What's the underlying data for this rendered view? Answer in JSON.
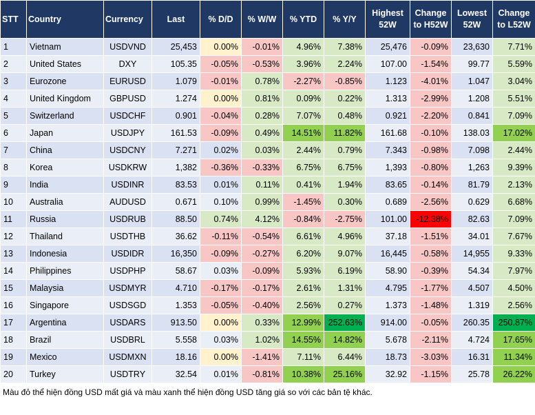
{
  "table": {
    "header": [
      "STT",
      "Country",
      "Currency",
      "Last",
      "% D/D",
      "% W/W",
      "% YTD",
      "% Y/Y",
      "Highest 52W",
      "Change to H52W",
      "Lowest 52W",
      "Change to L52W"
    ],
    "rows": [
      [
        "1",
        "Vietnam",
        "USDVND",
        "25,453",
        "0.00%",
        "-0.01%",
        "4.96%",
        "7.38%",
        "25,476",
        "-0.09%",
        "23,630",
        "7.71%"
      ],
      [
        "2",
        "United States",
        "DXY",
        "105.35",
        "-0.05%",
        "-0.53%",
        "3.96%",
        "2.24%",
        "107.00",
        "-1.54%",
        "99.77",
        "5.59%"
      ],
      [
        "3",
        "Eurozone",
        "EURUSD",
        "1.079",
        "-0.01%",
        "0.78%",
        "-2.27%",
        "-0.85%",
        "1.123",
        "-4.01%",
        "1.047",
        "3.04%"
      ],
      [
        "4",
        "United Kingdom",
        "GBPUSD",
        "1.274",
        "0.00%",
        "0.81%",
        "0.09%",
        "0.22%",
        "1.313",
        "-2.99%",
        "1.208",
        "5.51%"
      ],
      [
        "5",
        "Switzerland",
        "USDCHF",
        "0.901",
        "-0.04%",
        "0.28%",
        "7.07%",
        "0.48%",
        "0.921",
        "-2.20%",
        "0.841",
        "7.09%"
      ],
      [
        "6",
        "Japan",
        "USDJPY",
        "161.53",
        "-0.09%",
        "0.49%",
        "14.51%",
        "11.82%",
        "161.68",
        "-0.10%",
        "138.03",
        "17.02%"
      ],
      [
        "7",
        "China",
        "USDCNY",
        "7.271",
        "0.02%",
        "0.03%",
        "2.44%",
        "0.79%",
        "7.343",
        "-0.98%",
        "7.098",
        "2.44%"
      ],
      [
        "8",
        "Korea",
        "USDKRW",
        "1,382",
        "-0.36%",
        "-0.33%",
        "6.75%",
        "6.75%",
        "1,393",
        "-0.80%",
        "1,263",
        "9.39%"
      ],
      [
        "9",
        "India",
        "USDINR",
        "83.53",
        "0.01%",
        "0.11%",
        "0.41%",
        "1.94%",
        "83.65",
        "-0.14%",
        "81.79",
        "2.13%"
      ],
      [
        "10",
        "Australia",
        "AUDUSD",
        "0.671",
        "0.10%",
        "0.99%",
        "-1.45%",
        "0.30%",
        "0.689",
        "-2.56%",
        "0.629",
        "6.68%"
      ],
      [
        "11",
        "Russia",
        "USDRUB",
        "88.50",
        "0.74%",
        "4.12%",
        "-0.84%",
        "-2.75%",
        "101.00",
        "-12.38%",
        "82.63",
        "7.09%"
      ],
      [
        "12",
        "Thailand",
        "USDTHB",
        "36.62",
        "-0.11%",
        "-0.54%",
        "6.61%",
        "4.96%",
        "37.18",
        "-1.51%",
        "34.01",
        "7.67%"
      ],
      [
        "13",
        "Indonesia",
        "USDIDR",
        "16,350",
        "-0.09%",
        "-0.27%",
        "6.20%",
        "9.07%",
        "16,445",
        "-0.58%",
        "14,955",
        "9.33%"
      ],
      [
        "14",
        "Philippines",
        "USDPHP",
        "58.67",
        "0.03%",
        "-0.09%",
        "5.93%",
        "6.19%",
        "58.90",
        "-0.39%",
        "54.34",
        "7.97%"
      ],
      [
        "15",
        "Malaysia",
        "USDMYR",
        "4.710",
        "-0.17%",
        "-0.17%",
        "2.61%",
        "1.31%",
        "4.795",
        "-1.77%",
        "4.507",
        "4.50%"
      ],
      [
        "16",
        "Singapore",
        "USDSGD",
        "1.353",
        "-0.05%",
        "-0.40%",
        "2.56%",
        "0.27%",
        "1.373",
        "-1.48%",
        "1.319",
        "2.56%"
      ],
      [
        "17",
        "Argentina",
        "USDARS",
        "913.50",
        "0.00%",
        "0.33%",
        "12.99%",
        "252.63%",
        "914.00",
        "-0.05%",
        "260.35",
        "250.87%"
      ],
      [
        "18",
        "Brazil",
        "USDBRL",
        "5.558",
        "0.03%",
        "1.02%",
        "14.55%",
        "14.82%",
        "5.678",
        "-2.11%",
        "4.724",
        "17.65%"
      ],
      [
        "19",
        "Mexico",
        "USDMXN",
        "18.16",
        "0.00%",
        "-1.41%",
        "7.11%",
        "6.44%",
        "18.73",
        "-3.03%",
        "16.31",
        "11.34%"
      ],
      [
        "20",
        "Turkey",
        "USDTRY",
        "32.54",
        "0.01%",
        "-0.81%",
        "10.38%",
        "25.16%",
        "32.92",
        "-1.15%",
        "25.78",
        "26.22%"
      ]
    ]
  },
  "footnote": "Màu đỏ thể hiện đồng USD mất giá và màu xanh thể hiện đồng USD tăng giá so với các bản tệ khác."
}
